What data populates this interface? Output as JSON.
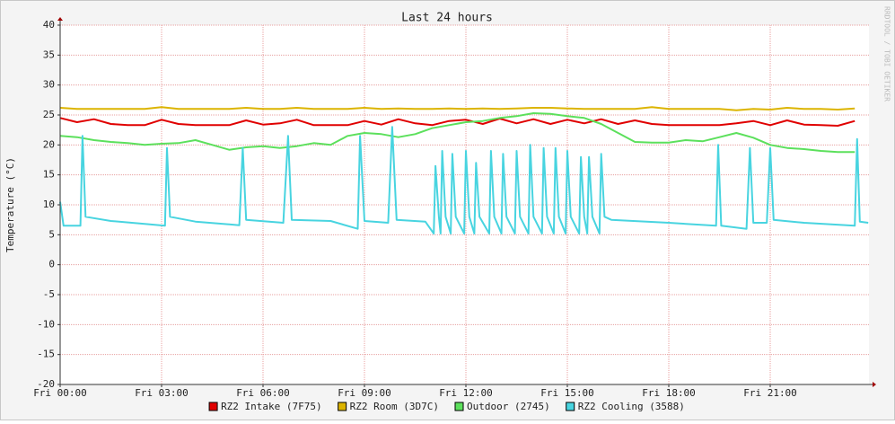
{
  "chart_data": {
    "type": "line",
    "title": "Last 24 hours",
    "y_label": "Temperature (°C)",
    "watermark": "RRDTOOL / TOBI OETIKER",
    "grid": true,
    "xlim": [
      0,
      23.92
    ],
    "xticks": [
      {
        "value": 0,
        "label": "Fri 00:00"
      },
      {
        "value": 3,
        "label": "Fri 03:00"
      },
      {
        "value": 6,
        "label": "Fri 06:00"
      },
      {
        "value": 9,
        "label": "Fri 09:00"
      },
      {
        "value": 12,
        "label": "Fri 12:00"
      },
      {
        "value": 15,
        "label": "Fri 15:00"
      },
      {
        "value": 18,
        "label": "Fri 18:00"
      },
      {
        "value": 21,
        "label": "Fri 21:00"
      }
    ],
    "ylim": [
      -20,
      40
    ],
    "yticks": [
      -20,
      -15,
      -10,
      -5,
      0,
      5,
      10,
      15,
      20,
      25,
      30,
      35,
      40
    ],
    "x": [
      0,
      0.5,
      1,
      1.5,
      2,
      2.5,
      3,
      3.5,
      4,
      4.5,
      5,
      5.5,
      6,
      6.5,
      7,
      7.5,
      8,
      8.5,
      9,
      9.5,
      10,
      10.5,
      11,
      11.5,
      12,
      12.5,
      13,
      13.5,
      14,
      14.5,
      15,
      15.5,
      16,
      16.5,
      17,
      17.5,
      18,
      18.5,
      19,
      19.5,
      20,
      20.5,
      21,
      21.5,
      22,
      22.5,
      23,
      23.5
    ],
    "series": [
      {
        "name": "RZ2 Intake (7F75)",
        "color": "#e00000",
        "values": [
          24.5,
          23.8,
          24.3,
          23.5,
          23.3,
          23.3,
          24.2,
          23.5,
          23.3,
          23.3,
          23.3,
          24.1,
          23.4,
          23.6,
          24.2,
          23.3,
          23.3,
          23.3,
          24.0,
          23.4,
          24.3,
          23.6,
          23.3,
          24.0,
          24.2,
          23.5,
          24.4,
          23.6,
          24.3,
          23.5,
          24.2,
          23.6,
          24.3,
          23.5,
          24.1,
          23.5,
          23.3,
          23.3,
          23.3,
          23.3,
          23.6,
          24.0,
          23.3,
          24.1,
          23.4,
          23.3,
          23.2,
          24.0
        ]
      },
      {
        "name": "RZ2 Room (3D7C)",
        "color": "#dcb400",
        "values": [
          26.2,
          26.0,
          26.0,
          26.0,
          26.0,
          26.0,
          26.3,
          26.0,
          26.0,
          26.0,
          26.0,
          26.2,
          26.0,
          26.0,
          26.2,
          26.0,
          26.0,
          26.0,
          26.2,
          26.0,
          26.1,
          26.0,
          26.0,
          26.1,
          26.0,
          26.1,
          26.0,
          26.1,
          26.2,
          26.2,
          26.1,
          26.0,
          26.0,
          26.0,
          26.0,
          26.3,
          26.0,
          26.0,
          26.0,
          26.0,
          25.8,
          26.0,
          25.9,
          26.2,
          26.0,
          26.0,
          25.9,
          26.1
        ]
      },
      {
        "name": "Outdoor (2745)",
        "color": "#5ce05c",
        "values": [
          21.5,
          21.3,
          20.8,
          20.5,
          20.3,
          20.0,
          20.2,
          20.3,
          20.8,
          20.0,
          19.2,
          19.6,
          19.8,
          19.5,
          19.8,
          20.3,
          20.0,
          21.5,
          22.0,
          21.8,
          21.3,
          21.8,
          22.8,
          23.3,
          23.8,
          24.0,
          24.5,
          24.8,
          25.3,
          25.2,
          24.8,
          24.5,
          23.5,
          22.0,
          20.5,
          20.4,
          20.4,
          20.8,
          20.6,
          21.3,
          22.0,
          21.2,
          20.0,
          19.5,
          19.3,
          19.0,
          18.8,
          18.8
        ]
      },
      {
        "name": "RZ2 Cooling (3588)",
        "color": "#48d4e0",
        "x": [
          0,
          0.1,
          0.6,
          0.66,
          0.75,
          1.5,
          2.5,
          3.1,
          3.16,
          3.25,
          4,
          5.3,
          5.4,
          5.5,
          6.6,
          6.74,
          6.85,
          8,
          8.8,
          8.87,
          9,
          9.7,
          9.82,
          9.95,
          10.8,
          11.05,
          11.1,
          11.2,
          11.25,
          11.3,
          11.4,
          11.55,
          11.6,
          11.7,
          11.95,
          12.0,
          12.1,
          12.25,
          12.3,
          12.4,
          12.69,
          12.74,
          12.84,
          13.05,
          13.1,
          13.2,
          13.45,
          13.5,
          13.6,
          13.85,
          13.9,
          14.0,
          14.25,
          14.3,
          14.4,
          14.6,
          14.65,
          14.75,
          14.95,
          15.0,
          15.1,
          15.35,
          15.4,
          15.5,
          15.59,
          15.64,
          15.74,
          15.95,
          16.0,
          16.1,
          16.3,
          18,
          19.4,
          19.46,
          19.55,
          20.3,
          20.4,
          20.5,
          20.9,
          21.0,
          21.1,
          22,
          23.5,
          23.57,
          23.65,
          23.9
        ],
        "values": [
          10.5,
          6.5,
          6.5,
          21.5,
          8,
          7.3,
          6.8,
          6.5,
          19.5,
          8,
          7.2,
          6.6,
          19.5,
          7.5,
          7,
          21.5,
          7.5,
          7.3,
          6,
          21.5,
          7.3,
          7,
          23,
          7.5,
          7.2,
          5.2,
          16.5,
          8,
          5.2,
          19,
          8,
          5.2,
          18.5,
          8,
          5.2,
          19,
          8,
          5.2,
          17,
          8,
          5.2,
          19,
          8,
          5.2,
          18.5,
          8,
          5.2,
          19,
          8,
          5.2,
          20,
          8,
          5.2,
          19.5,
          8,
          5.2,
          19.5,
          8,
          5.2,
          19,
          8,
          5.2,
          18,
          8,
          5.2,
          18,
          8,
          5.2,
          18.5,
          8,
          7.5,
          7,
          6.5,
          20,
          6.5,
          6,
          19.5,
          7,
          7,
          19.5,
          7.5,
          7,
          6.5,
          21,
          7.2,
          7
        ]
      }
    ]
  }
}
